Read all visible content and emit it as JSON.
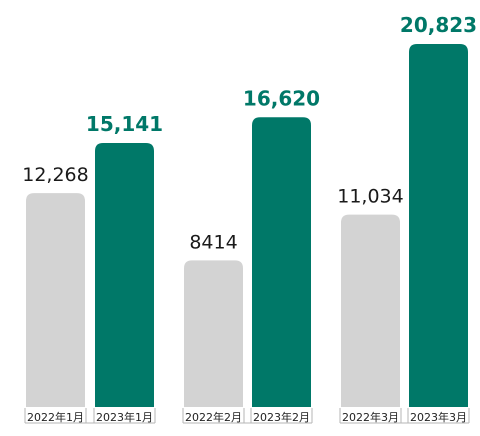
{
  "chart_data": {
    "type": "bar",
    "categories": [
      "2022年1月",
      "2023年1月",
      "2022年2月",
      "2023年2月",
      "2022年3月",
      "2023年3月"
    ],
    "values": [
      12268,
      15141,
      8414,
      16620,
      11034,
      20823
    ],
    "value_labels": [
      "12,268",
      "15,141",
      "8414",
      "16,620",
      "11,034",
      "20,823"
    ],
    "groups": [
      {
        "bars": [
          0,
          1
        ]
      },
      {
        "bars": [
          2,
          3
        ]
      },
      {
        "bars": [
          4,
          5
        ]
      }
    ],
    "colors": {
      "year_2022": "#d3d3d3",
      "year_2023": "#007868",
      "label_2022": "#1a1a1a",
      "label_2023": "#007868",
      "axis": "#b5b5b5"
    },
    "title": "",
    "xlabel": "",
    "ylabel": "",
    "ylim": [
      0,
      20823
    ],
    "grid": false,
    "legend": "none"
  }
}
